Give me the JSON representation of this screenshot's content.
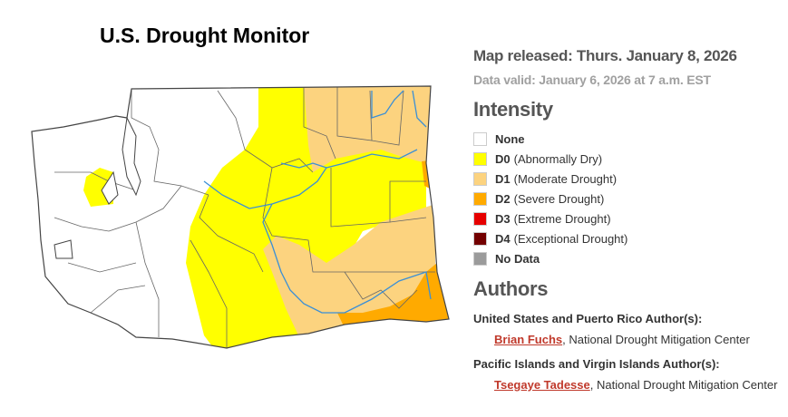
{
  "header": {
    "title": "U.S. Drought Monitor"
  },
  "info": {
    "released": "Map released: Thurs. January 8, 2026",
    "valid": "Data valid: January 6, 2026 at 7 a.m. EST"
  },
  "legend": {
    "title": "Intensity",
    "items": [
      {
        "code": "None",
        "color": "#ffffff"
      },
      {
        "code": "D0",
        "label": "(Abnormally Dry)",
        "color": "#ffff00"
      },
      {
        "code": "D1",
        "label": "(Moderate Drought)",
        "color": "#fcd37f"
      },
      {
        "code": "D2",
        "label": "(Severe Drought)",
        "color": "#ffaa00"
      },
      {
        "code": "D3",
        "label": "(Extreme Drought)",
        "color": "#e60000"
      },
      {
        "code": "D4",
        "label": "(Exceptional Drought)",
        "color": "#730000"
      },
      {
        "code": "No Data",
        "color": "#9b9b9b"
      }
    ]
  },
  "authors": {
    "title": "Authors",
    "groups": [
      {
        "heading": "United States and Puerto Rico Author(s):",
        "name": "Brian Fuchs",
        "affiliation": ", National Drought Mitigation Center"
      },
      {
        "heading": "Pacific Islands and Virgin Islands Author(s):",
        "name": "Tsegaye Tadesse",
        "affiliation": ", National Drought Mitigation Center"
      }
    ]
  }
}
